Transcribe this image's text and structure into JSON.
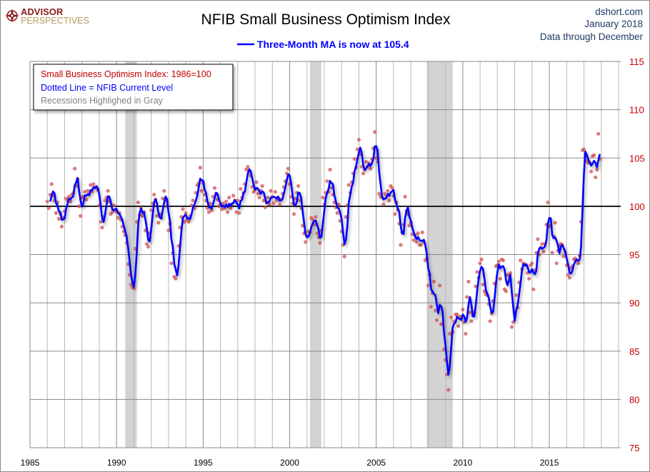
{
  "header": {
    "logo_line1": "ADVISOR",
    "logo_line2": "PERSPECTIVES",
    "title": "NFIB Small Business Optimism Index",
    "site": "dshort.com",
    "date": "January 2018",
    "data_through": "Data through December",
    "ma_label": "Three-Month MA is now at 105.4"
  },
  "legend": {
    "line1": "Small Business Optimism Index: 1986=100",
    "line2": "Dotted Line = NFIB Current Level",
    "line3": "Recessions Highlighed in Gray"
  },
  "colors": {
    "ma_line": "#0000ff",
    "dots": "#d05050",
    "recession": "#d3d3d3",
    "y_tick_labels": "#c00000",
    "legend_line1": "#c00000",
    "legend_line2": "#0000ff",
    "legend_line3": "#808080",
    "title": "#000000",
    "subtitle": "#1f3864"
  },
  "chart_data": {
    "type": "line",
    "title": "NFIB Small Business Optimism Index",
    "xlim": [
      1985,
      2019
    ],
    "ylim": [
      75,
      115
    ],
    "x_ticks": [
      "1985",
      "1990",
      "1995",
      "2000",
      "2005",
      "2010",
      "2015"
    ],
    "y_ticks": [
      "75",
      "80",
      "85",
      "90",
      "95",
      "100",
      "105",
      "110",
      "115"
    ],
    "reference_line": 100,
    "grid": true,
    "recessions": [
      [
        1990.5,
        1991.17
      ],
      [
        2001.17,
        2001.83
      ],
      [
        2007.92,
        2009.42
      ]
    ],
    "series": [
      {
        "name": "Small Business Optimism Index",
        "style": "dots",
        "start_year": 1986,
        "monthly_by_year": [
          [
            100.5,
            99.8,
            101.2,
            102.3,
            101.1,
            100.6,
            99.3,
            100.4,
            98.7,
            99.2,
            97.9,
            98.8
          ],
          [
            99.5,
            100.8,
            100.6,
            101.0,
            100.5,
            101.2,
            101.4,
            103.9,
            102.1,
            102.8,
            100.0,
            99.0
          ],
          [
            100.9,
            101.0,
            101.5,
            100.7,
            101.6,
            101.2,
            102.2,
            101.5,
            102.3,
            101.9,
            102.0,
            101.7
          ],
          [
            100.1,
            98.4,
            97.8,
            98.9,
            100.6,
            100.9,
            101.6,
            100.5,
            99.2,
            99.4,
            100.1,
            99.6
          ],
          [
            99.5,
            98.8,
            99.3,
            98.6,
            97.9,
            97.4,
            97.0,
            96.2,
            94.0,
            92.9,
            91.9,
            91.6
          ],
          [
            91.5,
            95.6,
            98.4,
            100.4,
            99.1,
            99.8,
            99.0,
            99.4,
            97.5,
            96.1,
            95.8,
            97.2
          ],
          [
            99.6,
            100.3,
            101.2,
            100.7,
            99.0,
            98.3,
            99.2,
            98.8,
            100.8,
            101.6,
            100.6,
            100.0
          ],
          [
            97.5,
            98.2,
            94.1,
            95.2,
            92.7,
            92.5,
            93.3,
            95.9,
            97.8,
            98.9,
            99.7,
            98.4
          ],
          [
            99.3,
            98.6,
            98.4,
            99.0,
            100.1,
            100.6,
            99.8,
            101.4,
            102.2,
            102.4,
            104.0,
            101.6
          ],
          [
            102.4,
            101.2,
            100.6,
            99.8,
            99.4,
            100.3,
            99.6,
            101.0,
            101.9,
            101.3,
            100.7,
            100.0
          ],
          [
            100.2,
            99.7,
            100.3,
            99.8,
            100.5,
            99.4,
            100.9,
            99.8,
            100.2,
            101.1,
            100.6,
            99.4
          ],
          [
            100.6,
            99.3,
            101.8,
            100.9,
            101.4,
            102.3,
            103.8,
            104.1,
            103.6,
            103.2,
            102.0,
            101.5
          ],
          [
            101.7,
            102.5,
            101.3,
            100.9,
            101.6,
            102.1,
            100.6,
            99.9,
            100.4,
            100.9,
            100.2,
            101.6
          ],
          [
            101.0,
            100.3,
            101.5,
            100.6,
            100.9,
            100.2,
            100.7,
            101.3,
            102.0,
            102.6,
            103.4,
            103.9
          ],
          [
            102.3,
            101.0,
            100.3,
            99.2,
            100.8,
            101.4,
            102.1,
            100.6,
            99.8,
            98.0,
            97.2,
            96.3
          ],
          [
            96.9,
            97.4,
            97.3,
            98.8,
            98.6,
            98.1,
            98.9,
            97.2,
            96.8,
            96.2,
            97.5,
            100.9
          ],
          [
            100.2,
            101.4,
            102.6,
            101.5,
            103.8,
            101.9,
            101.2,
            100.4,
            99.9,
            99.3,
            100.2,
            98.5
          ],
          [
            97.4,
            96.0,
            94.8,
            98.9,
            100.1,
            102.2,
            101.4,
            102.5,
            103.4,
            104.9,
            104.0,
            105.9
          ],
          [
            106.9,
            105.4,
            104.1,
            103.4,
            103.8,
            104.6,
            104.1,
            104.5,
            103.9,
            104.9,
            106.0,
            107.7
          ],
          [
            105.0,
            104.6,
            101.3,
            101.0,
            100.9,
            100.2,
            101.3,
            101.0,
            101.6,
            100.6,
            102.1,
            101.9
          ],
          [
            101.1,
            99.2,
            100.4,
            99.6,
            98.2,
            96.0,
            97.3,
            98.1,
            101.0,
            99.5,
            99.2,
            98.0
          ],
          [
            98.3,
            97.1,
            96.5,
            97.0,
            96.3,
            97.2,
            96.0,
            96.0,
            97.3,
            96.3,
            94.4,
            94.6
          ],
          [
            91.8,
            92.9,
            89.6,
            91.0,
            92.2,
            89.2,
            88.2,
            89.4,
            91.8,
            87.8,
            87.8,
            85.2
          ],
          [
            84.1,
            82.6,
            81.0,
            86.8,
            88.5,
            87.0,
            88.1,
            88.8,
            88.8,
            87.6,
            88.6,
            88.5
          ],
          [
            89.3,
            88.0,
            86.8,
            90.6,
            92.2,
            89.0,
            88.1,
            88.7,
            89.0,
            91.7,
            93.2,
            92.6
          ],
          [
            94.1,
            94.5,
            91.9,
            91.2,
            90.9,
            90.8,
            89.9,
            88.1,
            88.9,
            90.2,
            92.0,
            93.8
          ],
          [
            93.9,
            94.3,
            92.5,
            94.5,
            94.4,
            91.4,
            91.2,
            92.9,
            92.8,
            93.1,
            87.5,
            88.0
          ],
          [
            88.9,
            90.8,
            89.5,
            92.1,
            94.4,
            93.5,
            94.1,
            94.0,
            93.9,
            93.1,
            92.5,
            93.9
          ],
          [
            94.1,
            91.4,
            93.4,
            95.2,
            96.6,
            95.0,
            95.7,
            96.1,
            95.3,
            96.1,
            98.1,
            100.4
          ],
          [
            97.9,
            98.0,
            95.2,
            96.9,
            98.3,
            94.1,
            95.4,
            95.9,
            96.1,
            96.0,
            94.8,
            95.2
          ],
          [
            93.9,
            92.9,
            92.6,
            93.6,
            93.8,
            94.5,
            94.6,
            94.4,
            94.1,
            94.9,
            98.4,
            105.8
          ],
          [
            105.9,
            105.3,
            104.7,
            104.5,
            104.5,
            103.6,
            105.2,
            105.3,
            103.0,
            103.8,
            107.5,
            104.9
          ]
        ]
      },
      {
        "name": "Three-Month MA",
        "style": "line",
        "derived_from": "3-month moving average of index",
        "latest": 105.4
      }
    ]
  }
}
